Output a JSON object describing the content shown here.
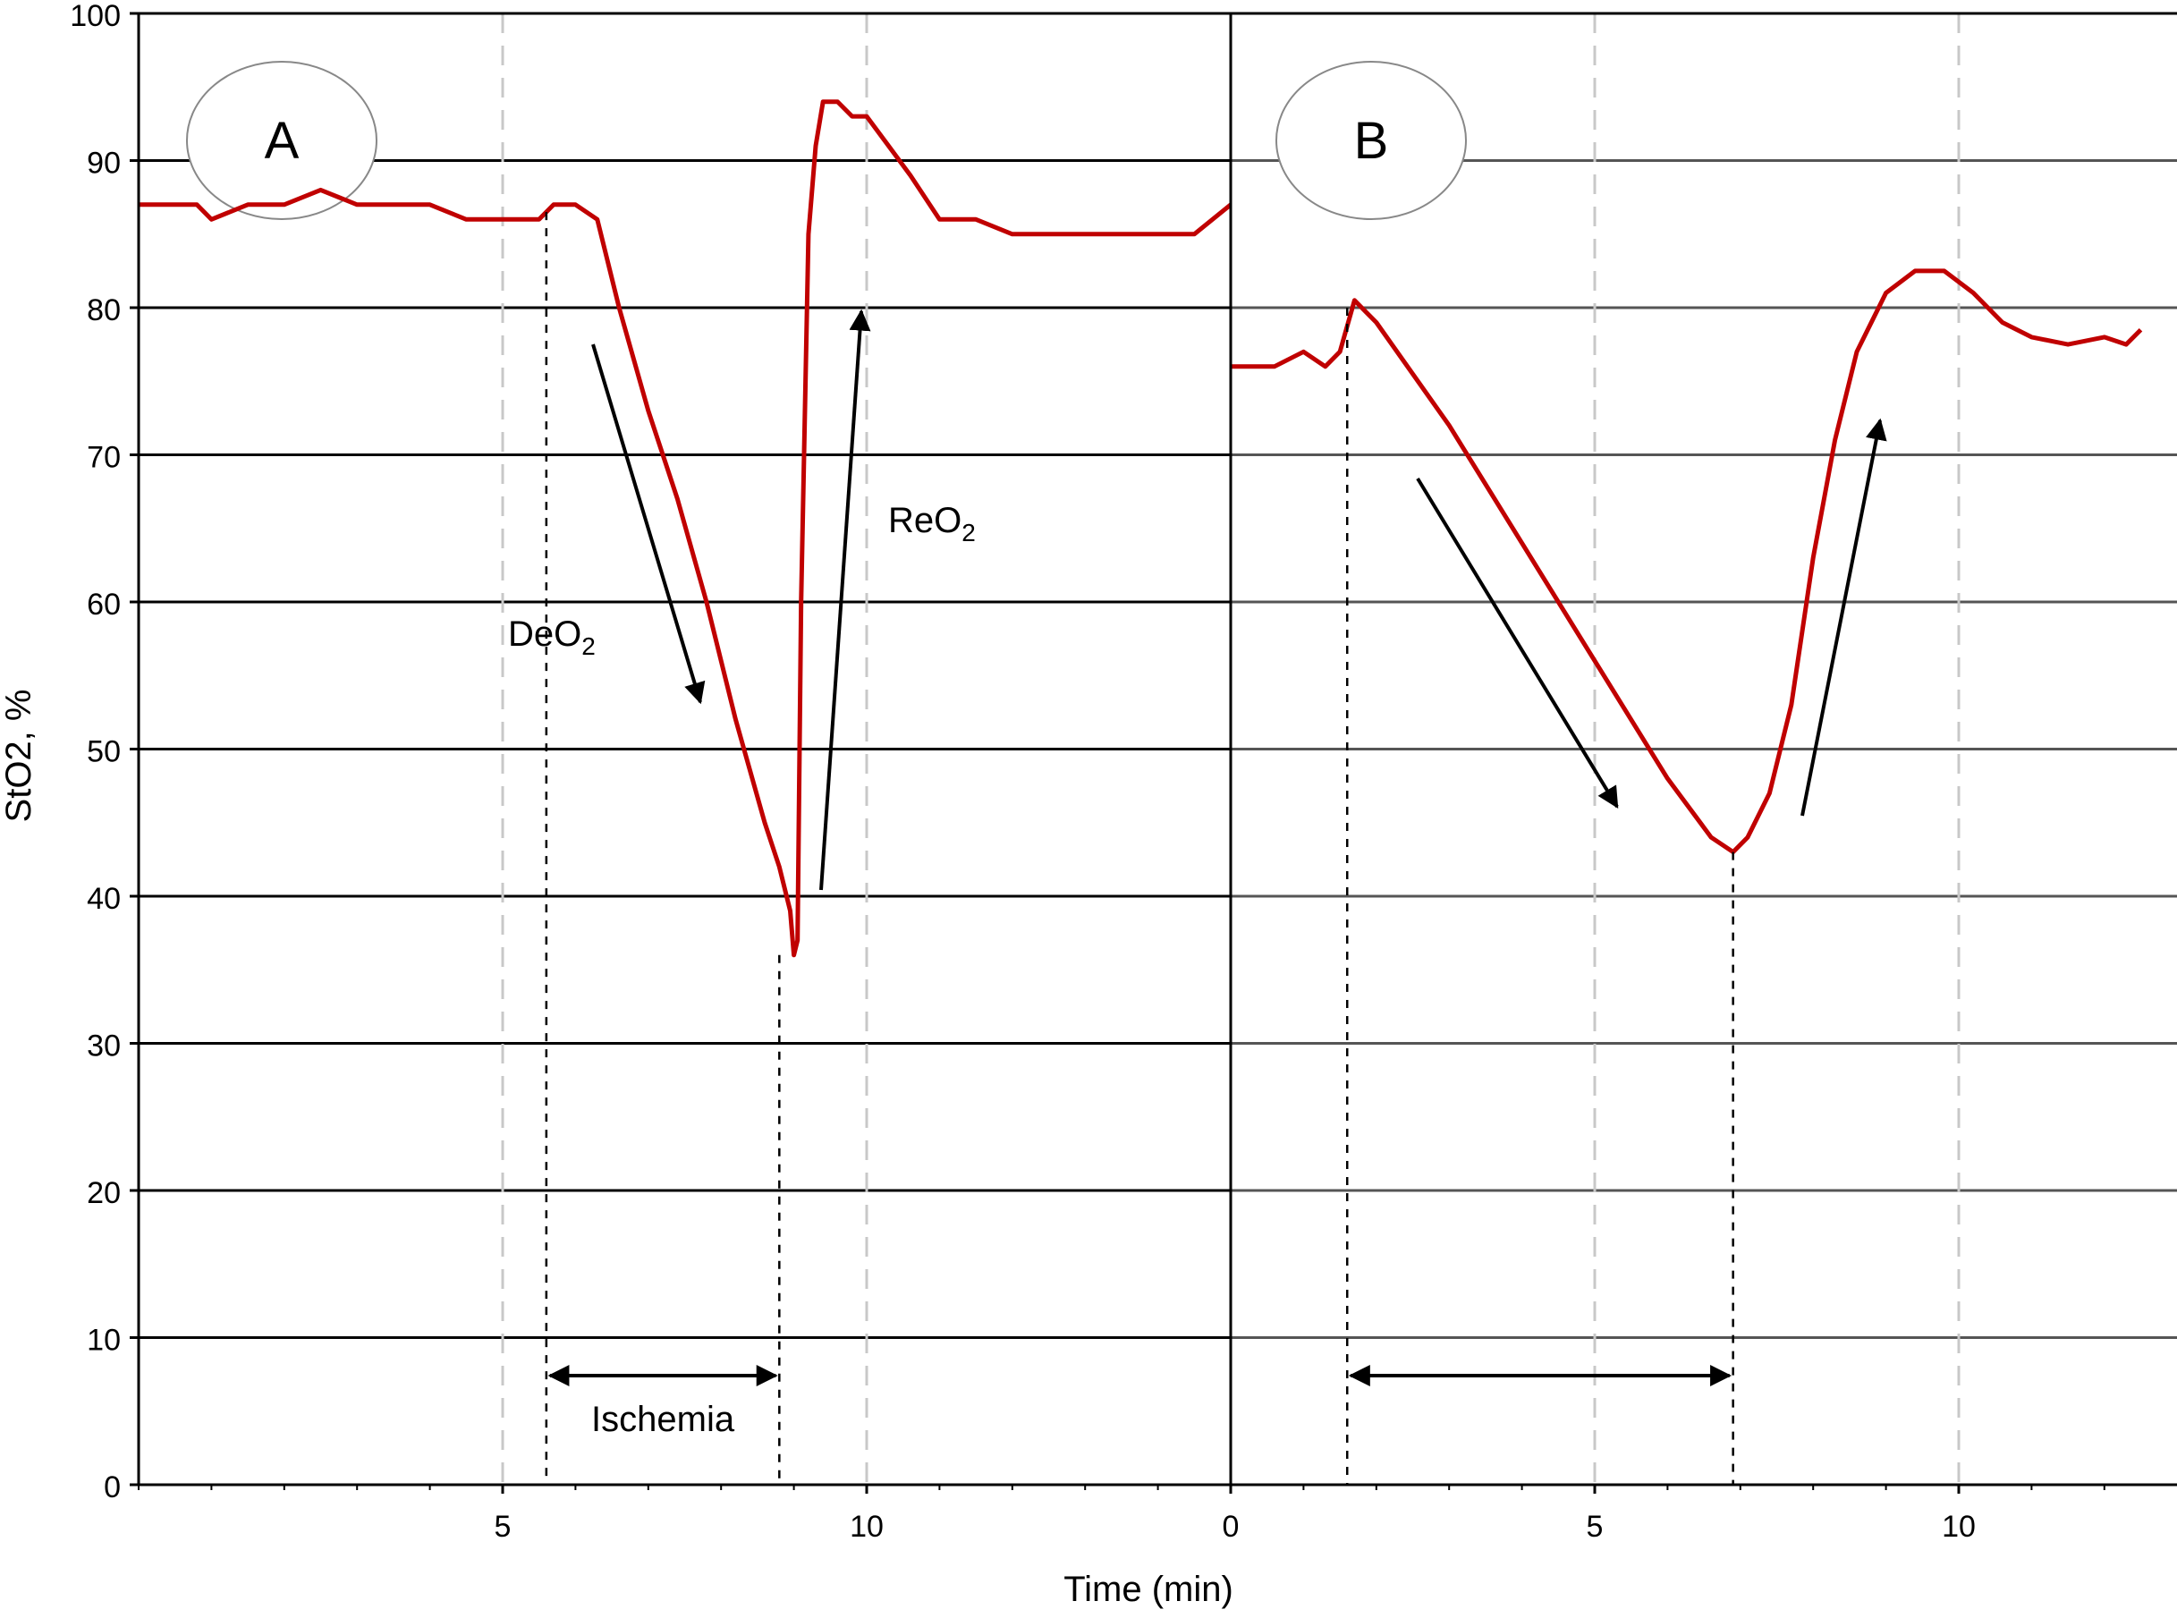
{
  "chart_data": [
    {
      "type": "line",
      "panel_label": "A",
      "x_ticks": [
        5,
        10
      ],
      "ylim": [
        0,
        100
      ],
      "y_ticks": [
        0,
        10,
        20,
        30,
        40,
        50,
        60,
        70,
        80,
        90,
        100
      ],
      "series": [
        {
          "color": "#c00000",
          "x": [
            0.0,
            0.8,
            1.0,
            1.5,
            2.0,
            2.5,
            3.0,
            3.5,
            4.0,
            4.5,
            5.0,
            5.5,
            5.7,
            6.0,
            6.3,
            6.6,
            7.0,
            7.4,
            7.8,
            8.2,
            8.6,
            8.8,
            8.95,
            9.0,
            9.05,
            9.1,
            9.2,
            9.3,
            9.4,
            9.6,
            9.8,
            10.0,
            10.3,
            10.6,
            11.0,
            11.5,
            12.0,
            12.5,
            13.0,
            13.5,
            14.0,
            14.5,
            15.0
          ],
          "y": [
            87,
            87,
            86,
            87,
            87,
            88,
            87,
            87,
            87,
            86,
            86,
            86,
            87,
            87,
            86,
            80,
            73,
            67,
            60,
            52,
            45,
            42,
            39,
            36,
            37,
            60,
            85,
            91,
            94,
            94,
            93,
            93,
            91,
            89,
            86,
            86,
            85,
            85,
            85,
            85,
            85,
            85,
            87
          ]
        }
      ],
      "annotations": {
        "deo2_label": "DeO",
        "reo2_label": "ReO",
        "subscript": "2",
        "ischemia_label": "Ischemia",
        "ischemia_start_x": 5.6,
        "ischemia_end_x": 8.8
      }
    },
    {
      "type": "line",
      "panel_label": "B",
      "x_ticks": [
        0,
        5,
        10
      ],
      "ylim": [
        0,
        100
      ],
      "series": [
        {
          "color": "#c00000",
          "x": [
            0.0,
            0.6,
            1.0,
            1.3,
            1.5,
            1.7,
            2.0,
            3.0,
            4.0,
            5.0,
            6.0,
            6.6,
            6.9,
            7.1,
            7.4,
            7.7,
            8.0,
            8.3,
            8.6,
            9.0,
            9.4,
            9.8,
            10.2,
            10.6,
            11.0,
            11.5,
            12.0,
            12.3,
            12.5
          ],
          "y": [
            76,
            76,
            77,
            76,
            77,
            80.5,
            79,
            72,
            64,
            56,
            48,
            44,
            43,
            44,
            47,
            53,
            63,
            71,
            77,
            81,
            82.5,
            82.5,
            81,
            79,
            78,
            77.5,
            78,
            77.5,
            78.5
          ]
        }
      ],
      "annotations": {
        "ischemia_start_x": 1.6,
        "ischemia_end_x": 6.9
      }
    }
  ],
  "ylabel": "StO2, %",
  "xlabel": "Time (min)"
}
